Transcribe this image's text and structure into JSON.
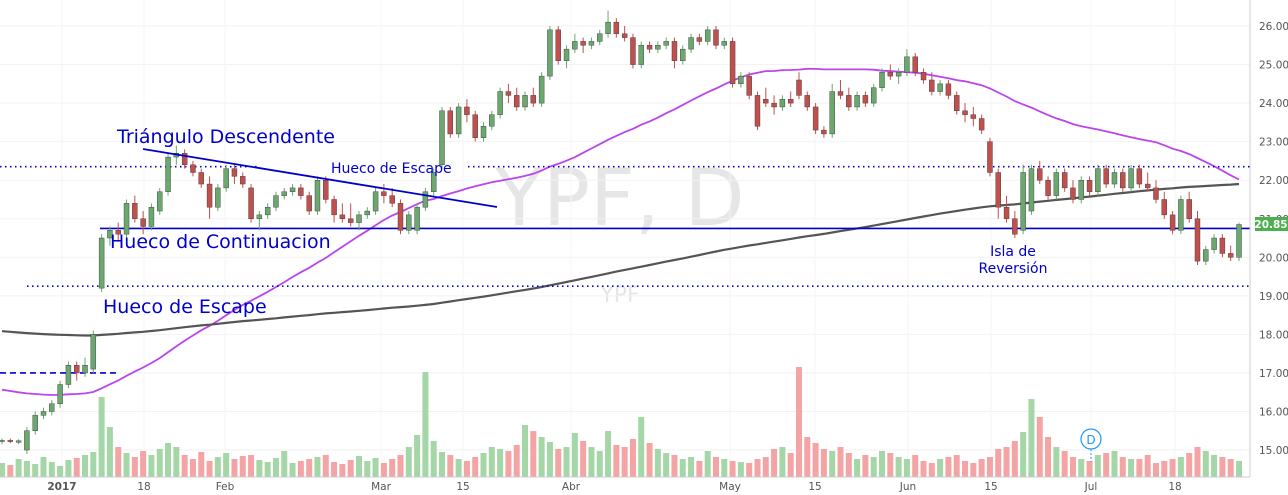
{
  "chart_data": {
    "type": "candlestick",
    "watermark": "YPF, D",
    "watermark_sub": "YPF",
    "x_axis_labels": [
      {
        "label": "2017",
        "date": "2017-01-02",
        "bold": true
      },
      {
        "label": "18",
        "date": "2017-01-18",
        "bold": false
      },
      {
        "label": "Feb",
        "date": "2017-02-01",
        "bold": false
      },
      {
        "label": "Mar",
        "date": "2017-03-01",
        "bold": false
      },
      {
        "label": "15",
        "date": "2017-03-15",
        "bold": false
      },
      {
        "label": "Abr",
        "date": "2017-04-03",
        "bold": false
      },
      {
        "label": "May",
        "date": "2017-05-01",
        "bold": false
      },
      {
        "label": "15",
        "date": "2017-05-15",
        "bold": false
      },
      {
        "label": "Jun",
        "date": "2017-06-01",
        "bold": false
      },
      {
        "label": "15",
        "date": "2017-06-15",
        "bold": false
      },
      {
        "label": "Jul",
        "date": "2017-07-03",
        "bold": false
      },
      {
        "label": "18",
        "date": "2017-07-18",
        "bold": false
      }
    ],
    "y_ticks": [
      "26.00",
      "25.00",
      "24.00",
      "23.00",
      "22.00",
      "21.00",
      "20.00",
      "19.00",
      "18.00",
      "17.00",
      "16.00",
      "15.00"
    ],
    "y_range": [
      14.6,
      26.5
    ],
    "last_price": "20.85",
    "colors": {
      "up": "#6ba76e",
      "down": "#c0504d",
      "up_volume": "#a5d6a7",
      "down_volume": "#f4a4a4",
      "annotation": "#0000cc",
      "sma_short": "#bb44ee",
      "sma_long": "#555555",
      "last_price_tag": "#4caf50"
    },
    "candles_ohlc_approx": [
      [
        15.22,
        15.3,
        15.15,
        15.25
      ],
      [
        15.25,
        15.3,
        15.18,
        15.22
      ],
      [
        15.2,
        15.28,
        15.15,
        15.24
      ],
      [
        15.0,
        15.6,
        14.9,
        15.5
      ],
      [
        15.5,
        16.0,
        15.4,
        15.9
      ],
      [
        15.9,
        16.1,
        15.8,
        16.0
      ],
      [
        16.0,
        16.3,
        15.9,
        16.2
      ],
      [
        16.2,
        16.8,
        16.1,
        16.7
      ],
      [
        16.7,
        17.3,
        16.6,
        17.2
      ],
      [
        17.2,
        17.3,
        16.8,
        17.0
      ],
      [
        17.0,
        17.4,
        16.9,
        17.2
      ],
      [
        17.1,
        18.1,
        17.0,
        18.0
      ],
      [
        19.2,
        20.6,
        19.1,
        20.5
      ],
      [
        20.5,
        20.8,
        20.3,
        20.7
      ],
      [
        20.7,
        20.9,
        20.4,
        20.6
      ],
      [
        20.6,
        21.5,
        20.5,
        21.4
      ],
      [
        21.4,
        21.6,
        20.9,
        21.0
      ],
      [
        21.0,
        21.2,
        20.6,
        20.8
      ],
      [
        20.8,
        21.4,
        20.7,
        21.3
      ],
      [
        21.2,
        21.8,
        21.1,
        21.7
      ],
      [
        21.7,
        22.7,
        21.6,
        22.6
      ],
      [
        22.6,
        22.9,
        22.4,
        22.7
      ],
      [
        22.7,
        22.8,
        22.3,
        22.4
      ],
      [
        22.4,
        22.5,
        22.1,
        22.2
      ],
      [
        22.2,
        22.3,
        21.8,
        21.9
      ],
      [
        21.9,
        22.1,
        21.0,
        21.3
      ],
      [
        21.3,
        21.9,
        21.2,
        21.8
      ],
      [
        21.8,
        22.4,
        21.7,
        22.3
      ],
      [
        22.3,
        22.4,
        21.9,
        22.1
      ],
      [
        22.1,
        22.2,
        21.8,
        21.9
      ],
      [
        21.8,
        21.9,
        20.9,
        21.0
      ],
      [
        21.0,
        21.2,
        20.7,
        21.1
      ],
      [
        21.1,
        21.4,
        21.0,
        21.3
      ],
      [
        21.3,
        21.7,
        21.2,
        21.6
      ],
      [
        21.6,
        21.8,
        21.5,
        21.7
      ],
      [
        21.7,
        21.9,
        21.6,
        21.8
      ],
      [
        21.8,
        21.9,
        21.5,
        21.6
      ],
      [
        21.6,
        21.7,
        21.1,
        21.2
      ],
      [
        21.2,
        22.1,
        21.1,
        22.0
      ],
      [
        22.0,
        22.1,
        21.4,
        21.5
      ],
      [
        21.5,
        21.6,
        20.9,
        21.1
      ],
      [
        21.1,
        21.4,
        20.9,
        21.0
      ],
      [
        21.0,
        21.4,
        20.8,
        20.9
      ],
      [
        20.9,
        21.2,
        20.7,
        21.1
      ],
      [
        21.1,
        21.3,
        21.0,
        21.2
      ],
      [
        21.2,
        21.8,
        21.1,
        21.7
      ],
      [
        21.7,
        21.9,
        21.4,
        21.6
      ],
      [
        21.6,
        21.8,
        21.3,
        21.4
      ],
      [
        21.4,
        21.5,
        20.6,
        20.7
      ],
      [
        20.7,
        21.2,
        20.6,
        21.1
      ],
      [
        20.7,
        21.4,
        20.6,
        21.3
      ],
      [
        21.3,
        21.8,
        21.2,
        21.7
      ],
      [
        21.7,
        22.3,
        21.6,
        22.2
      ],
      [
        22.4,
        23.9,
        22.3,
        23.8
      ],
      [
        23.8,
        23.9,
        23.1,
        23.2
      ],
      [
        23.2,
        24.0,
        23.1,
        23.9
      ],
      [
        23.9,
        24.1,
        23.5,
        23.7
      ],
      [
        23.7,
        23.8,
        23.0,
        23.1
      ],
      [
        23.1,
        23.5,
        23.0,
        23.4
      ],
      [
        23.4,
        23.8,
        23.3,
        23.7
      ],
      [
        23.7,
        24.4,
        23.6,
        24.3
      ],
      [
        24.3,
        24.5,
        24.0,
        24.2
      ],
      [
        24.2,
        24.4,
        23.8,
        23.9
      ],
      [
        23.9,
        24.3,
        23.8,
        24.2
      ],
      [
        24.2,
        24.4,
        23.9,
        24.0
      ],
      [
        24.0,
        24.8,
        23.9,
        24.7
      ],
      [
        24.7,
        26.0,
        24.6,
        25.9
      ],
      [
        25.9,
        26.0,
        25.0,
        25.1
      ],
      [
        25.1,
        25.5,
        24.9,
        25.4
      ],
      [
        25.4,
        25.8,
        25.3,
        25.6
      ],
      [
        25.6,
        25.7,
        25.3,
        25.5
      ],
      [
        25.5,
        25.7,
        25.4,
        25.6
      ],
      [
        25.6,
        25.9,
        25.5,
        25.8
      ],
      [
        25.8,
        26.4,
        25.7,
        26.1
      ],
      [
        26.1,
        26.2,
        25.7,
        25.8
      ],
      [
        25.8,
        26.0,
        25.6,
        25.7
      ],
      [
        25.7,
        25.8,
        24.9,
        25.0
      ],
      [
        25.0,
        25.6,
        24.9,
        25.5
      ],
      [
        25.5,
        25.6,
        25.3,
        25.4
      ],
      [
        25.4,
        25.6,
        25.3,
        25.5
      ],
      [
        25.5,
        25.7,
        25.4,
        25.6
      ],
      [
        25.6,
        25.7,
        24.9,
        25.1
      ],
      [
        25.1,
        25.5,
        25.0,
        25.4
      ],
      [
        25.4,
        25.8,
        25.3,
        25.7
      ],
      [
        25.7,
        25.8,
        25.5,
        25.6
      ],
      [
        25.6,
        26.0,
        25.5,
        25.9
      ],
      [
        25.9,
        26.0,
        25.4,
        25.5
      ],
      [
        25.5,
        25.7,
        25.4,
        25.6
      ],
      [
        25.6,
        25.7,
        24.4,
        24.5
      ],
      [
        24.5,
        24.8,
        24.4,
        24.7
      ],
      [
        24.7,
        24.8,
        24.1,
        24.2
      ],
      [
        24.2,
        24.3,
        23.3,
        23.4
      ],
      [
        24.1,
        24.4,
        23.9,
        24.0
      ],
      [
        24.0,
        24.2,
        23.7,
        23.9
      ],
      [
        23.9,
        24.2,
        23.8,
        24.1
      ],
      [
        24.1,
        24.3,
        23.9,
        24.0
      ],
      [
        24.6,
        24.8,
        24.1,
        24.2
      ],
      [
        24.2,
        24.3,
        23.8,
        23.9
      ],
      [
        23.9,
        24.0,
        23.2,
        23.3
      ],
      [
        23.3,
        23.4,
        23.1,
        23.2
      ],
      [
        23.2,
        24.5,
        23.1,
        24.3
      ],
      [
        24.3,
        24.6,
        24.1,
        24.2
      ],
      [
        24.2,
        24.4,
        23.8,
        23.9
      ],
      [
        23.9,
        24.3,
        23.8,
        24.2
      ],
      [
        24.2,
        24.3,
        23.9,
        24.0
      ],
      [
        24.0,
        24.5,
        23.9,
        24.4
      ],
      [
        24.4,
        24.9,
        24.3,
        24.8
      ],
      [
        24.8,
        25.0,
        24.6,
        24.7
      ],
      [
        24.7,
        24.9,
        24.5,
        24.8
      ],
      [
        24.8,
        25.4,
        24.7,
        25.2
      ],
      [
        25.2,
        25.3,
        24.7,
        24.8
      ],
      [
        24.8,
        24.9,
        24.5,
        24.6
      ],
      [
        24.6,
        24.8,
        24.2,
        24.3
      ],
      [
        24.3,
        24.6,
        24.2,
        24.5
      ],
      [
        24.5,
        24.6,
        24.1,
        24.2
      ],
      [
        24.2,
        24.3,
        23.7,
        23.8
      ],
      [
        23.8,
        24.0,
        23.5,
        23.7
      ],
      [
        23.7,
        23.9,
        23.4,
        23.6
      ],
      [
        23.6,
        23.7,
        23.2,
        23.3
      ],
      [
        23.0,
        23.1,
        22.1,
        22.2
      ],
      [
        22.2,
        22.3,
        21.0,
        21.3
      ],
      [
        21.3,
        21.6,
        20.9,
        21.0
      ],
      [
        21.0,
        21.2,
        20.5,
        20.6
      ],
      [
        20.7,
        22.4,
        20.6,
        22.2
      ],
      [
        21.2,
        22.4,
        21.1,
        22.3
      ],
      [
        22.3,
        22.5,
        21.9,
        22.0
      ],
      [
        22.0,
        22.1,
        21.5,
        21.6
      ],
      [
        21.6,
        22.3,
        21.5,
        22.2
      ],
      [
        22.2,
        22.3,
        21.7,
        21.8
      ],
      [
        21.8,
        22.0,
        21.4,
        21.5
      ],
      [
        21.5,
        22.1,
        21.4,
        22.0
      ],
      [
        22.0,
        22.1,
        21.6,
        21.7
      ],
      [
        21.7,
        22.4,
        21.6,
        22.3
      ],
      [
        22.3,
        22.4,
        21.8,
        21.9
      ],
      [
        21.9,
        22.3,
        21.8,
        22.2
      ],
      [
        22.2,
        22.3,
        21.7,
        21.8
      ],
      [
        21.8,
        22.4,
        21.7,
        22.3
      ],
      [
        22.3,
        22.4,
        21.8,
        21.9
      ],
      [
        21.9,
        22.2,
        21.7,
        21.8
      ],
      [
        21.8,
        22.0,
        21.4,
        21.5
      ],
      [
        21.5,
        21.7,
        21.0,
        21.1
      ],
      [
        21.1,
        21.2,
        20.6,
        20.7
      ],
      [
        20.7,
        21.6,
        20.6,
        21.5
      ],
      [
        21.5,
        21.7,
        20.9,
        21.0
      ],
      [
        21.0,
        21.2,
        19.8,
        19.9
      ],
      [
        19.9,
        20.3,
        19.8,
        20.2
      ],
      [
        20.2,
        20.6,
        20.1,
        20.5
      ],
      [
        20.5,
        20.6,
        20.0,
        20.1
      ],
      [
        20.1,
        20.3,
        19.9,
        20.0
      ],
      [
        20.0,
        20.9,
        19.9,
        20.85
      ]
    ],
    "annotations": [
      {
        "text": "Triángulo Descendente",
        "role": "pattern-label"
      },
      {
        "text": "Hueco de Escape",
        "role": "gap-label-small"
      },
      {
        "text": "Hueco de Continuacion",
        "role": "gap-label"
      },
      {
        "text": "Hueco de Escape",
        "role": "gap-label"
      },
      {
        "text": "Isla de",
        "role": "island-label-line1"
      },
      {
        "text": "Reversión",
        "role": "island-label-line2"
      }
    ],
    "event_marker": "D",
    "horizontal_levels": [
      {
        "value": 20.75,
        "style": "solid"
      },
      {
        "value": 22.35,
        "style": "dotted"
      },
      {
        "value": 19.25,
        "style": "dotted"
      },
      {
        "value": 17.0,
        "style": "dashed"
      }
    ]
  }
}
